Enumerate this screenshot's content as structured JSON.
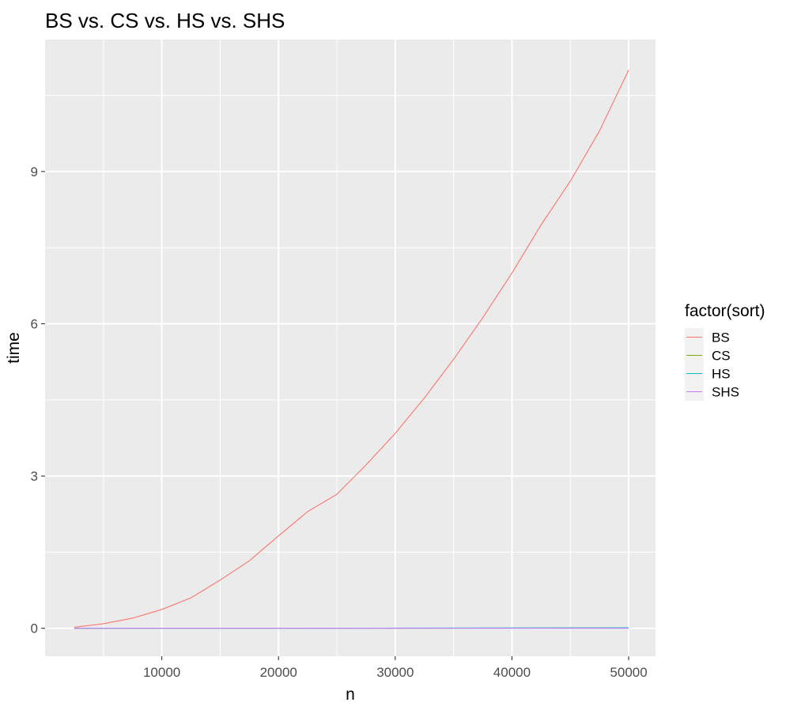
{
  "chart_data": {
    "type": "line",
    "title": "BS vs. CS vs. HS vs. SHS",
    "xlabel": "n",
    "ylabel": "time",
    "xlim": [
      0,
      52300
    ],
    "ylim": [
      -0.55,
      11.6
    ],
    "x_ticks": [
      10000,
      20000,
      30000,
      40000,
      50000
    ],
    "y_ticks": [
      0,
      3,
      6,
      9
    ],
    "x_tick_labels": [
      "10000",
      "20000",
      "30000",
      "40000",
      "50000"
    ],
    "y_tick_labels": [
      "0",
      "3",
      "6",
      "9"
    ],
    "grid": true,
    "legend_title": "factor(sort)",
    "legend_position": "right",
    "series": [
      {
        "name": "BS",
        "color": "#F8766D",
        "points": [
          [
            2500,
            0.02
          ],
          [
            5000,
            0.09
          ],
          [
            7500,
            0.2
          ],
          [
            10000,
            0.37
          ],
          [
            12500,
            0.6
          ],
          [
            15000,
            0.95
          ],
          [
            17500,
            1.33
          ],
          [
            20000,
            1.82
          ],
          [
            22500,
            2.3
          ],
          [
            25000,
            2.64
          ],
          [
            27500,
            3.22
          ],
          [
            30000,
            3.84
          ],
          [
            32500,
            4.54
          ],
          [
            35000,
            5.3
          ],
          [
            37500,
            6.12
          ],
          [
            40000,
            7.0
          ],
          [
            42500,
            7.95
          ],
          [
            45000,
            8.81
          ],
          [
            47500,
            9.8
          ],
          [
            50000,
            11.0
          ]
        ]
      },
      {
        "name": "CS",
        "color": "#7CAE00",
        "points": [
          [
            2500,
            0.0
          ],
          [
            10000,
            0.0
          ],
          [
            20000,
            0.0
          ],
          [
            30000,
            0.0
          ],
          [
            40000,
            0.005
          ],
          [
            50000,
            0.01
          ]
        ]
      },
      {
        "name": "HS",
        "color": "#00BFC4",
        "points": [
          [
            2500,
            0.0
          ],
          [
            10000,
            0.001
          ],
          [
            20000,
            0.002
          ],
          [
            28750,
            0.003
          ],
          [
            30000,
            0.004
          ],
          [
            40000,
            0.006
          ],
          [
            48750,
            0.008
          ],
          [
            50000,
            0.01
          ]
        ]
      },
      {
        "name": "SHS",
        "color": "#C77CFF",
        "points": [
          [
            2500,
            0.0
          ],
          [
            10000,
            0.0
          ],
          [
            20000,
            0.0
          ],
          [
            30000,
            0.0
          ],
          [
            40000,
            0.0
          ],
          [
            50000,
            0.0
          ]
        ]
      }
    ]
  }
}
